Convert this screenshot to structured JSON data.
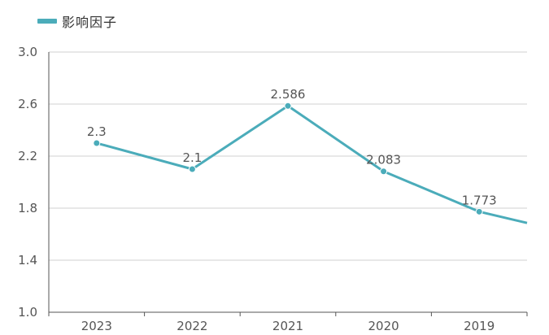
{
  "chart_data": {
    "type": "line",
    "categories": [
      "2023",
      "2022",
      "2021",
      "2020",
      "2019"
    ],
    "series": [
      {
        "name": "影响因子",
        "values": [
          2.3,
          2.1,
          2.586,
          2.083,
          1.773
        ],
        "labels": [
          "2.3",
          "2.1",
          "2.586",
          "2.083",
          "1.773"
        ],
        "color": "#4bacba"
      }
    ],
    "continuation_value": 1.6,
    "yticks": [
      "1.0",
      "1.4",
      "1.8",
      "2.2",
      "2.6",
      "3.0"
    ],
    "ylim": [
      1.0,
      3.0
    ],
    "grid": true,
    "legend_position": "top-left",
    "title": "",
    "xlabel": "",
    "ylabel": ""
  }
}
